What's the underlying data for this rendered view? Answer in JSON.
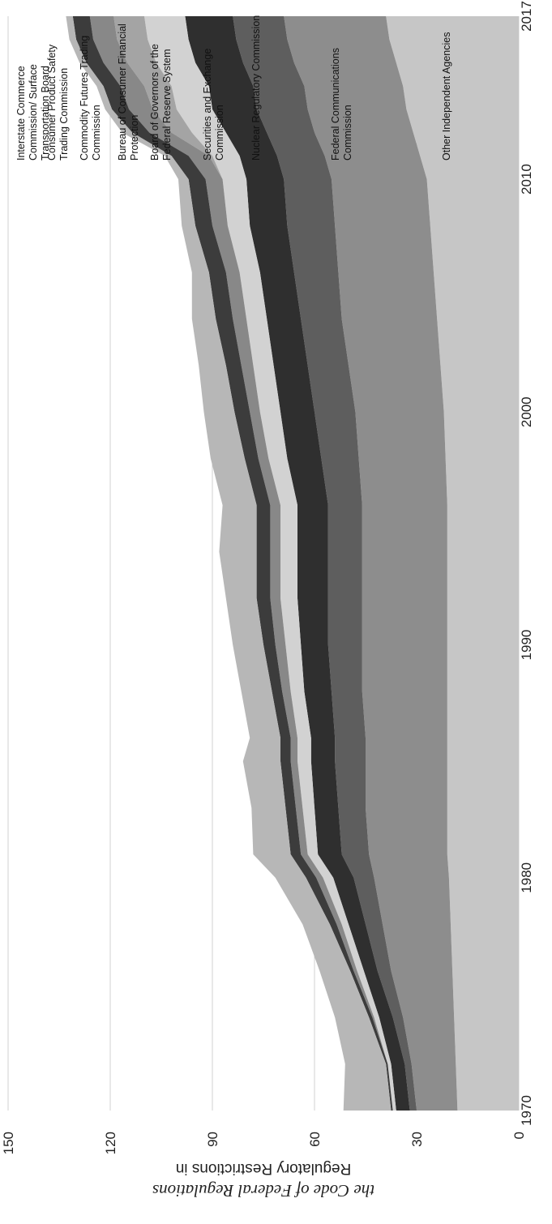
{
  "chart_data": {
    "type": "area",
    "stacked": true,
    "x": [
      1970,
      1972,
      1974,
      1976,
      1978,
      1980,
      1981,
      1983,
      1985,
      1986,
      1988,
      1990,
      1992,
      1994,
      1996,
      1998,
      2000,
      2002,
      2004,
      2006,
      2008,
      2010,
      2011,
      2012,
      2013,
      2014,
      2015,
      2016,
      2017
    ],
    "xticks": [
      "1970",
      "1980",
      "1990",
      "2000",
      "2010",
      "2017"
    ],
    "yticks": [
      "0",
      "30",
      "60",
      "90",
      "120",
      "150"
    ],
    "ylim": [
      0,
      150
    ],
    "ylabel_line1": "Regulatory Restrictions in",
    "ylabel_line2": "the Code of Federal Regulations",
    "grid": true,
    "legend_position": "right",
    "series": [
      {
        "name": "Other Independent Agencies",
        "color": "#c6c6c6",
        "values": [
          18,
          18.5,
          19,
          19.5,
          20,
          20.5,
          21,
          21,
          21,
          21,
          21,
          21,
          21,
          21,
          21,
          21.5,
          22,
          23,
          24,
          25,
          26,
          27,
          29,
          31,
          33,
          34,
          36,
          38,
          39
        ]
      },
      {
        "name": "Federal Communications Commission",
        "color": "#8d8d8d",
        "values": [
          12,
          13,
          15,
          18,
          20,
          22,
          23,
          24,
          24,
          24,
          25,
          25,
          25,
          25,
          25,
          25.5,
          26,
          27,
          28,
          28,
          28,
          28,
          28,
          29,
          29,
          29,
          30,
          30,
          30
        ]
      },
      {
        "name": "Nuclear Regulatory Commission",
        "color": "#5e5e5e",
        "values": [
          2,
          2,
          3,
          4,
          5,
          6,
          8,
          8,
          9,
          9,
          9,
          10,
          10,
          10,
          10,
          11,
          12,
          12,
          12,
          13,
          14,
          14,
          14,
          14,
          15,
          15,
          15,
          15,
          15
        ]
      },
      {
        "name": "Securities and Exchange Commission",
        "color": "#2f2f2f",
        "values": [
          4,
          4,
          4,
          4,
          5,
          6,
          7,
          7,
          7,
          7,
          8,
          8,
          9,
          9,
          9,
          10,
          10,
          10,
          10,
          10,
          11,
          11,
          11,
          12,
          13,
          13,
          14,
          14,
          14
        ]
      },
      {
        "name": "Board of Governors of the Federal Reserve System",
        "color": "#d2d2d2",
        "values": [
          1,
          1,
          1.5,
          2,
          2,
          3,
          3,
          3.5,
          4,
          4,
          4,
          4.5,
          5,
          5,
          5,
          5.5,
          6,
          6,
          6,
          6,
          6.5,
          7,
          8,
          10,
          10.5,
          11,
          11.5,
          12,
          12
        ]
      },
      {
        "name": "Bureau of Consumer Financial Protection",
        "color": "#a4a4a4",
        "values": [
          0,
          0,
          0,
          0,
          0,
          0,
          0,
          0,
          0,
          0,
          0,
          0,
          0,
          0,
          0,
          0,
          0,
          0,
          0,
          0,
          0,
          0,
          1,
          6,
          7,
          8,
          8.5,
          9,
          9
        ]
      },
      {
        "name": "Commodity Futures Trading Commission",
        "color": "#888888",
        "values": [
          0,
          0,
          0.5,
          1,
          1.5,
          2,
          2,
          2,
          2,
          2,
          2.5,
          3,
          3,
          3,
          3,
          3,
          3,
          3.5,
          4,
          4,
          4.5,
          5,
          6,
          6.5,
          7,
          7,
          7,
          7,
          7
        ]
      },
      {
        "name": "Consumer Product Safety Trading Commission",
        "color": "#3c3c3c",
        "values": [
          0.5,
          0.5,
          1,
          1,
          2,
          3,
          3,
          3,
          3,
          3,
          3,
          3.5,
          4,
          4,
          4,
          4,
          4.5,
          4.5,
          5,
          5,
          5,
          5,
          5,
          5,
          5,
          5,
          5,
          5,
          5
        ]
      },
      {
        "name": "Interstate Commerce Commission/ Surface Transportation Board",
        "color": "#b7b7b7",
        "values": [
          14,
          12,
          10,
          9,
          8,
          9,
          11,
          10,
          11,
          9,
          9,
          9,
          9,
          11,
          10,
          10,
          9,
          8,
          7,
          5,
          4,
          3,
          2,
          3,
          2,
          2,
          2,
          2,
          2
        ]
      }
    ]
  }
}
